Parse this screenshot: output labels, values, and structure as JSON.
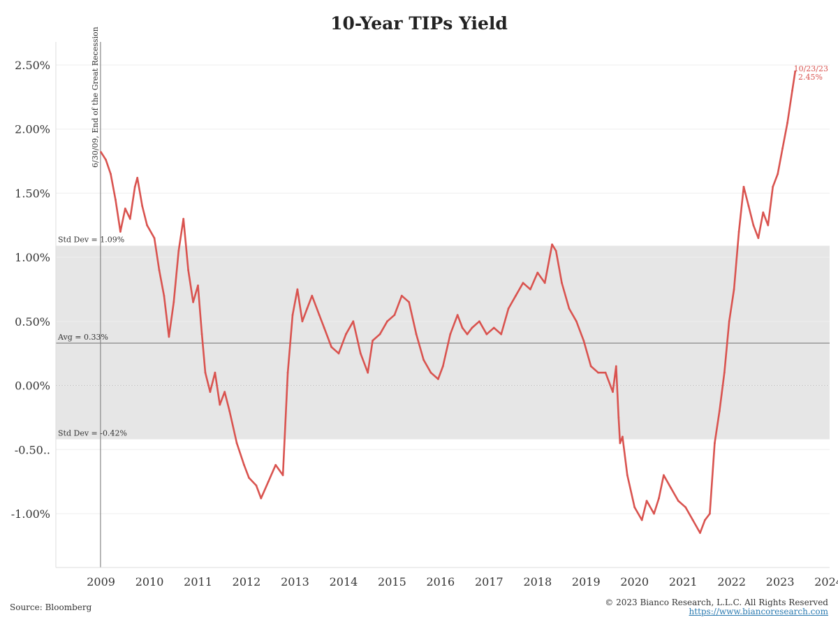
{
  "chart_data": {
    "type": "line",
    "title": "10-Year TIPs Yield",
    "xlabel": "",
    "ylabel": "",
    "y_ticks": [
      "2.50%",
      "2.00%",
      "1.50%",
      "1.00%",
      "0.50%",
      "0.00%",
      "-0.50..",
      "-1.00%"
    ],
    "y_tick_values": [
      2.5,
      2.0,
      1.5,
      1.0,
      0.5,
      0.0,
      -0.5,
      -1.0
    ],
    "ylim": [
      -1.42,
      2.68
    ],
    "x_ticks": [
      "2009",
      "2010",
      "2011",
      "2012",
      "2013",
      "2014",
      "2015",
      "2016",
      "2017",
      "2018",
      "2019",
      "2020",
      "2021",
      "2022",
      "2023",
      "2024"
    ],
    "xlim": [
      2008.57,
      2024.52
    ],
    "grid": true,
    "band": {
      "low": -0.42,
      "high": 1.09,
      "color": "#e6e6e6"
    },
    "annotations": {
      "std_dev_high": "Std Dev = 1.09%",
      "std_dev_low": "Std Dev = -0.42%",
      "avg": "Avg = 0.33%",
      "avg_value": 0.33,
      "recession_label": "6/30/09, End of the Great Recession",
      "recession_date": 2009.49,
      "last_date": "10/23/23",
      "last_value": "2.45%"
    },
    "series": [
      {
        "color": "#d9534f",
        "x": [
          2009.5,
          2009.6,
          2009.7,
          2009.8,
          2009.9,
          2010.0,
          2010.1,
          2010.2,
          2010.25,
          2010.35,
          2010.45,
          2010.6,
          2010.7,
          2010.8,
          2010.9,
          2011.0,
          2011.1,
          2011.2,
          2011.3,
          2011.4,
          2011.5,
          2011.58,
          2011.65,
          2011.75,
          2011.85,
          2011.95,
          2012.05,
          2012.15,
          2012.3,
          2012.45,
          2012.55,
          2012.7,
          2012.8,
          2012.95,
          2013.1,
          2013.25,
          2013.35,
          2013.45,
          2013.55,
          2013.65,
          2013.75,
          2013.85,
          2014.0,
          2014.1,
          2014.25,
          2014.4,
          2014.55,
          2014.7,
          2014.85,
          2015.0,
          2015.1,
          2015.25,
          2015.4,
          2015.55,
          2015.7,
          2015.85,
          2016.0,
          2016.15,
          2016.3,
          2016.45,
          2016.55,
          2016.7,
          2016.85,
          2016.95,
          2017.05,
          2017.15,
          2017.3,
          2017.45,
          2017.6,
          2017.75,
          2017.9,
          2018.05,
          2018.2,
          2018.35,
          2018.5,
          2018.65,
          2018.8,
          2018.88,
          2019.0,
          2019.15,
          2019.3,
          2019.45,
          2019.6,
          2019.75,
          2019.9,
          2020.05,
          2020.12,
          2020.17,
          2020.2,
          2020.25,
          2020.35,
          2020.5,
          2020.65,
          2020.75,
          2020.9,
          2021.0,
          2021.1,
          2021.25,
          2021.4,
          2021.55,
          2021.7,
          2021.85,
          2021.95,
          2022.05,
          2022.15,
          2022.25,
          2022.35,
          2022.45,
          2022.55,
          2022.65,
          2022.75,
          2022.85,
          2022.95,
          2023.05,
          2023.15,
          2023.25,
          2023.35,
          2023.45,
          2023.55,
          2023.65,
          2023.75,
          2023.81
        ],
        "y": [
          1.82,
          1.76,
          1.65,
          1.45,
          1.2,
          1.38,
          1.3,
          1.55,
          1.62,
          1.4,
          1.25,
          1.15,
          0.9,
          0.7,
          0.38,
          0.65,
          1.05,
          1.3,
          0.9,
          0.65,
          0.78,
          0.4,
          0.1,
          -0.05,
          0.1,
          -0.15,
          -0.05,
          -0.2,
          -0.45,
          -0.62,
          -0.72,
          -0.78,
          -0.88,
          -0.75,
          -0.62,
          -0.7,
          0.1,
          0.55,
          0.75,
          0.5,
          0.6,
          0.7,
          0.55,
          0.45,
          0.3,
          0.25,
          0.4,
          0.5,
          0.25,
          0.1,
          0.35,
          0.4,
          0.5,
          0.55,
          0.7,
          0.65,
          0.4,
          0.2,
          0.1,
          0.05,
          0.15,
          0.4,
          0.55,
          0.45,
          0.4,
          0.45,
          0.5,
          0.4,
          0.45,
          0.4,
          0.6,
          0.7,
          0.8,
          0.75,
          0.88,
          0.8,
          1.1,
          1.05,
          0.8,
          0.6,
          0.5,
          0.35,
          0.15,
          0.1,
          0.1,
          -0.05,
          0.15,
          -0.25,
          -0.45,
          -0.4,
          -0.7,
          -0.95,
          -1.05,
          -0.9,
          -1.0,
          -0.88,
          -0.7,
          -0.8,
          -0.9,
          -0.95,
          -1.05,
          -1.15,
          -1.05,
          -1.0,
          -0.45,
          -0.2,
          0.1,
          0.5,
          0.75,
          1.2,
          1.55,
          1.4,
          1.25,
          1.15,
          1.35,
          1.25,
          1.55,
          1.65,
          1.85,
          2.05,
          2.3,
          2.45
        ]
      }
    ]
  },
  "footer": {
    "source": "Source: Bloomberg",
    "copyright": "© 2023 Bianco Research, L.L.C. All Rights Reserved",
    "url": "https://www.biancoresearch.com"
  }
}
